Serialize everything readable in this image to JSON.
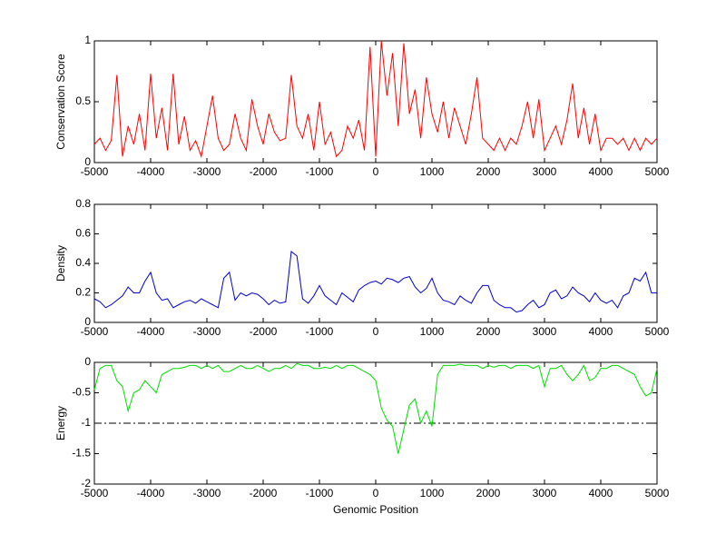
{
  "chart_data": [
    {
      "type": "line",
      "ylabel": "Conservation Score",
      "x": [
        -5000,
        -4900,
        -4800,
        -4700,
        -4600,
        -4500,
        -4400,
        -4300,
        -4200,
        -4100,
        -4000,
        -3900,
        -3800,
        -3700,
        -3600,
        -3500,
        -3400,
        -3300,
        -3200,
        -3100,
        -3000,
        -2900,
        -2800,
        -2700,
        -2600,
        -2500,
        -2400,
        -2300,
        -2200,
        -2100,
        -2000,
        -1900,
        -1800,
        -1700,
        -1600,
        -1500,
        -1400,
        -1300,
        -1200,
        -1100,
        -1000,
        -900,
        -800,
        -700,
        -600,
        -500,
        -400,
        -300,
        -200,
        -100,
        0,
        100,
        200,
        300,
        400,
        500,
        600,
        700,
        800,
        900,
        1000,
        1100,
        1200,
        1300,
        1400,
        1500,
        1600,
        1700,
        1800,
        1900,
        2000,
        2100,
        2200,
        2300,
        2400,
        2500,
        2600,
        2700,
        2800,
        2900,
        3000,
        3100,
        3200,
        3300,
        3400,
        3500,
        3600,
        3700,
        3800,
        3900,
        4000,
        4100,
        4200,
        4300,
        4400,
        4500,
        4600,
        4700,
        4800,
        4900,
        5000
      ],
      "series": [
        {
          "color": "#ff0000",
          "values": [
            0.15,
            0.2,
            0.1,
            0.18,
            0.72,
            0.05,
            0.3,
            0.15,
            0.4,
            0.1,
            0.73,
            0.2,
            0.45,
            0.1,
            0.73,
            0.15,
            0.38,
            0.1,
            0.18,
            0.05,
            0.3,
            0.55,
            0.2,
            0.1,
            0.15,
            0.4,
            0.2,
            0.1,
            0.52,
            0.3,
            0.15,
            0.4,
            0.25,
            0.18,
            0.2,
            0.72,
            0.3,
            0.2,
            0.4,
            0.1,
            0.5,
            0.15,
            0.25,
            0.05,
            0.1,
            0.3,
            0.2,
            0.35,
            0.1,
            0.95,
            0.05,
            1.0,
            0.55,
            0.9,
            0.3,
            0.98,
            0.4,
            0.6,
            0.2,
            0.7,
            0.4,
            0.25,
            0.5,
            0.2,
            0.45,
            0.3,
            0.15,
            0.4,
            0.7,
            0.2,
            0.15,
            0.1,
            0.2,
            0.1,
            0.2,
            0.15,
            0.3,
            0.5,
            0.2,
            0.52,
            0.1,
            0.2,
            0.3,
            0.15,
            0.35,
            0.65,
            0.2,
            0.45,
            0.15,
            0.4,
            0.1,
            0.2,
            0.2,
            0.15,
            0.2,
            0.1,
            0.2,
            0.1,
            0.2,
            0.15,
            0.2
          ]
        }
      ],
      "xlim": [
        -5000,
        5000
      ],
      "xticks": [
        -5000,
        -4000,
        -3000,
        -2000,
        -1000,
        0,
        1000,
        2000,
        3000,
        4000,
        5000
      ],
      "ylim": [
        0,
        1
      ],
      "yticks": [
        0,
        0.5,
        1
      ]
    },
    {
      "type": "line",
      "ylabel": "Density",
      "x": [
        -5000,
        -4900,
        -4800,
        -4700,
        -4600,
        -4500,
        -4400,
        -4300,
        -4200,
        -4100,
        -4000,
        -3900,
        -3800,
        -3700,
        -3600,
        -3500,
        -3400,
        -3300,
        -3200,
        -3100,
        -3000,
        -2900,
        -2800,
        -2700,
        -2600,
        -2500,
        -2400,
        -2300,
        -2200,
        -2100,
        -2000,
        -1900,
        -1800,
        -1700,
        -1600,
        -1500,
        -1400,
        -1300,
        -1200,
        -1100,
        -1000,
        -900,
        -800,
        -700,
        -600,
        -500,
        -400,
        -300,
        -200,
        -100,
        0,
        100,
        200,
        300,
        400,
        500,
        600,
        700,
        800,
        900,
        1000,
        1100,
        1200,
        1300,
        1400,
        1500,
        1600,
        1700,
        1800,
        1900,
        2000,
        2100,
        2200,
        2300,
        2400,
        2500,
        2600,
        2700,
        2800,
        2900,
        3000,
        3100,
        3200,
        3300,
        3400,
        3500,
        3600,
        3700,
        3800,
        3900,
        4000,
        4100,
        4200,
        4300,
        4400,
        4500,
        4600,
        4700,
        4800,
        4900,
        5000
      ],
      "series": [
        {
          "color": "#0000cc",
          "values": [
            0.16,
            0.14,
            0.1,
            0.12,
            0.15,
            0.18,
            0.24,
            0.2,
            0.2,
            0.28,
            0.34,
            0.2,
            0.15,
            0.16,
            0.1,
            0.12,
            0.14,
            0.15,
            0.13,
            0.16,
            0.14,
            0.12,
            0.1,
            0.3,
            0.34,
            0.15,
            0.2,
            0.18,
            0.2,
            0.19,
            0.16,
            0.12,
            0.15,
            0.13,
            0.14,
            0.48,
            0.45,
            0.16,
            0.13,
            0.18,
            0.25,
            0.18,
            0.15,
            0.12,
            0.2,
            0.17,
            0.14,
            0.22,
            0.25,
            0.27,
            0.28,
            0.26,
            0.3,
            0.29,
            0.27,
            0.3,
            0.31,
            0.24,
            0.2,
            0.23,
            0.3,
            0.2,
            0.15,
            0.14,
            0.12,
            0.18,
            0.15,
            0.13,
            0.2,
            0.25,
            0.25,
            0.15,
            0.12,
            0.1,
            0.1,
            0.07,
            0.08,
            0.12,
            0.15,
            0.1,
            0.12,
            0.2,
            0.22,
            0.16,
            0.18,
            0.24,
            0.2,
            0.18,
            0.14,
            0.2,
            0.15,
            0.13,
            0.15,
            0.1,
            0.18,
            0.2,
            0.3,
            0.28,
            0.34,
            0.2,
            0.2
          ]
        }
      ],
      "xlim": [
        -5000,
        5000
      ],
      "xticks": [
        -5000,
        -4000,
        -3000,
        -2000,
        -1000,
        0,
        1000,
        2000,
        3000,
        4000,
        5000
      ],
      "ylim": [
        0,
        0.8
      ],
      "yticks": [
        0,
        0.2,
        0.4,
        0.6,
        0.8
      ]
    },
    {
      "type": "line",
      "ylabel": "Energy",
      "xlabel": "Genomic Position",
      "x": [
        -5000,
        -4900,
        -4800,
        -4700,
        -4600,
        -4500,
        -4400,
        -4300,
        -4200,
        -4100,
        -4000,
        -3900,
        -3800,
        -3700,
        -3600,
        -3500,
        -3400,
        -3300,
        -3200,
        -3100,
        -3000,
        -2900,
        -2800,
        -2700,
        -2600,
        -2500,
        -2400,
        -2300,
        -2200,
        -2100,
        -2000,
        -1900,
        -1800,
        -1700,
        -1600,
        -1500,
        -1400,
        -1300,
        -1200,
        -1100,
        -1000,
        -900,
        -800,
        -700,
        -600,
        -500,
        -400,
        -300,
        -200,
        -100,
        0,
        100,
        200,
        300,
        400,
        500,
        600,
        700,
        800,
        900,
        1000,
        1100,
        1200,
        1300,
        1400,
        1500,
        1600,
        1700,
        1800,
        1900,
        2000,
        2100,
        2200,
        2300,
        2400,
        2500,
        2600,
        2700,
        2800,
        2900,
        3000,
        3100,
        3200,
        3300,
        3400,
        3500,
        3600,
        3700,
        3800,
        3900,
        4000,
        4100,
        4200,
        4300,
        4400,
        4500,
        4600,
        4700,
        4800,
        4900,
        5000
      ],
      "series": [
        {
          "color": "#00dd00",
          "values": [
            -0.45,
            -0.1,
            -0.05,
            -0.05,
            -0.3,
            -0.4,
            -0.8,
            -0.5,
            -0.45,
            -0.3,
            -0.4,
            -0.5,
            -0.2,
            -0.15,
            -0.1,
            -0.1,
            -0.08,
            -0.05,
            -0.05,
            -0.1,
            -0.05,
            -0.1,
            -0.05,
            -0.15,
            -0.15,
            -0.1,
            -0.05,
            -0.1,
            -0.1,
            -0.05,
            -0.1,
            -0.15,
            -0.1,
            -0.1,
            -0.05,
            -0.1,
            -0.02,
            -0.05,
            -0.05,
            -0.1,
            -0.1,
            -0.08,
            -0.1,
            -0.05,
            -0.1,
            -0.05,
            -0.05,
            -0.1,
            -0.15,
            -0.2,
            -0.3,
            -0.75,
            -0.95,
            -1.05,
            -1.5,
            -1.1,
            -0.7,
            -0.6,
            -1.0,
            -0.8,
            -1.05,
            -0.2,
            -0.05,
            -0.05,
            -0.05,
            -0.03,
            -0.05,
            -0.05,
            -0.05,
            -0.1,
            -0.05,
            -0.08,
            -0.05,
            -0.05,
            -0.1,
            -0.05,
            -0.05,
            -0.05,
            -0.1,
            -0.05,
            -0.4,
            -0.1,
            -0.1,
            -0.05,
            -0.2,
            -0.3,
            -0.2,
            -0.05,
            -0.3,
            -0.25,
            -0.1,
            -0.1,
            -0.05,
            -0.05,
            -0.1,
            -0.15,
            -0.2,
            -0.4,
            -0.55,
            -0.5,
            -0.1
          ]
        }
      ],
      "hlines": [
        -1
      ],
      "xlim": [
        -5000,
        5000
      ],
      "xticks": [
        -5000,
        -4000,
        -3000,
        -2000,
        -1000,
        0,
        1000,
        2000,
        3000,
        4000,
        5000
      ],
      "ylim": [
        -2,
        0
      ],
      "yticks": [
        -2,
        -1.5,
        -1,
        -0.5,
        0
      ]
    }
  ]
}
